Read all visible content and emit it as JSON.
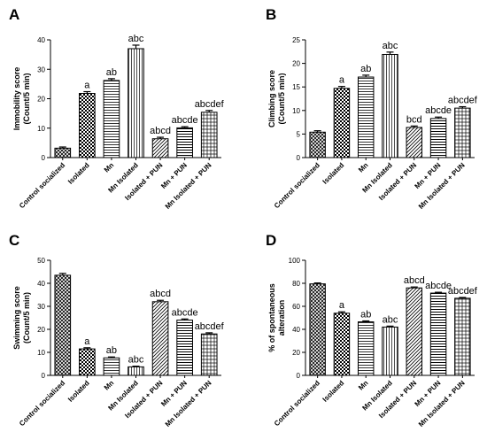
{
  "chart_data": [
    {
      "type": "bar",
      "panel": "A",
      "ylabel_lines": [
        "Immobility score",
        "(Count/5 min)"
      ],
      "ylim": [
        0,
        40
      ],
      "yticks": [
        0,
        10,
        20,
        30,
        40
      ],
      "categories": [
        "Control socialized",
        "Isolated",
        "Mn",
        "Mn Isolated",
        "Isolated + PUN",
        "Mn + PUN",
        "Mn Isolated + PUN"
      ],
      "values": [
        3.2,
        21.8,
        26.2,
        37,
        6.4,
        10.1,
        15.4
      ],
      "errors": [
        0.4,
        0.6,
        0.6,
        1.2,
        0.5,
        0.4,
        0.6
      ],
      "annotations": [
        "",
        "a",
        "ab",
        "abc",
        "abcd",
        "abcde",
        "abcdef"
      ]
    },
    {
      "type": "bar",
      "panel": "B",
      "ylabel_lines": [
        "Climbing score",
        "(Count/5 min)"
      ],
      "ylim": [
        0,
        25
      ],
      "yticks": [
        0,
        5,
        10,
        15,
        20,
        25
      ],
      "categories": [
        "Control socialized",
        "Isolated",
        "Mn",
        "Mn Isolated",
        "Isolated + PUN",
        "Mn + PUN",
        "Mn Isolated + PUN"
      ],
      "values": [
        5.4,
        14.7,
        17.1,
        21.9,
        6.4,
        8.3,
        10.5
      ],
      "errors": [
        0.3,
        0.4,
        0.4,
        0.5,
        0.3,
        0.3,
        0.3
      ],
      "annotations": [
        "",
        "a",
        "ab",
        "abc",
        "bcd",
        "abcde",
        "abcdef"
      ]
    },
    {
      "type": "bar",
      "panel": "C",
      "ylabel_lines": [
        "Swimming score",
        "(Count/5 min)"
      ],
      "ylim": [
        0,
        50
      ],
      "yticks": [
        0,
        10,
        20,
        30,
        40,
        50
      ],
      "categories": [
        "Control socialized",
        "Isolated",
        "Mn",
        "Mn Isolated",
        "Isolated + PUN",
        "Mn + PUN",
        "Mn Isolated + PUN"
      ],
      "values": [
        43.5,
        11.5,
        7.6,
        3.7,
        32,
        24,
        18
      ],
      "errors": [
        0.8,
        0.5,
        0.4,
        0.3,
        0.6,
        0.5,
        0.5
      ],
      "annotations": [
        "",
        "a",
        "ab",
        "abc",
        "abcd",
        "abcde",
        "abcdef"
      ]
    },
    {
      "type": "bar",
      "panel": "D",
      "ylabel_lines": [
        "% of spontaneous",
        "alteration"
      ],
      "ylim": [
        0,
        100
      ],
      "yticks": [
        0,
        20,
        40,
        60,
        80,
        100
      ],
      "categories": [
        "Control socialized",
        "Isolated",
        "Mn",
        "Mn Isolated",
        "Isolated + PUN",
        "Mn + PUN",
        "Mn Isolated + PUN"
      ],
      "values": [
        79.5,
        54,
        46.5,
        42,
        76,
        71.5,
        67
      ],
      "errors": [
        0.8,
        1.2,
        0.8,
        0.8,
        0.8,
        0.7,
        0.7
      ],
      "annotations": [
        "",
        "a",
        "ab",
        "abc",
        "abcd",
        "abcde",
        "abcdef"
      ]
    }
  ]
}
